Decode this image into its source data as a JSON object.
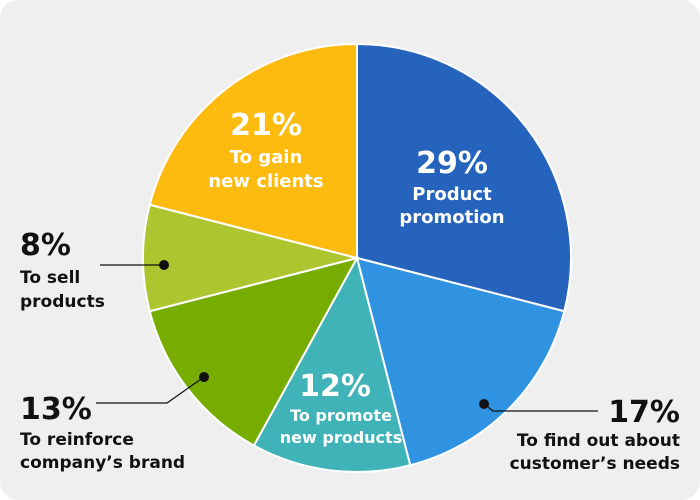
{
  "chart_data": {
    "type": "pie",
    "slices": [
      {
        "label": "Product promotion",
        "lines": [
          "Product",
          "promotion"
        ],
        "pct_text": "29%",
        "value": 29,
        "color": "#2563bd"
      },
      {
        "label": "To find out about customer's needs",
        "lines": [
          "To find out about",
          "customer’s needs"
        ],
        "pct_text": "17%",
        "value": 17,
        "color": "#2f93e2"
      },
      {
        "label": "To promote new products",
        "lines": [
          "To promote",
          "new products"
        ],
        "pct_text": "12%",
        "value": 12,
        "color": "#3fb3b7"
      },
      {
        "label": "To reinforce company's brand",
        "lines": [
          "To reinforce",
          "company’s brand"
        ],
        "pct_text": "13%",
        "value": 13,
        "color": "#77ad00"
      },
      {
        "label": "To sell products",
        "lines": [
          "To sell",
          "products"
        ],
        "pct_text": "8%",
        "value": 8,
        "color": "#adc630"
      },
      {
        "label": "To gain new clients",
        "lines": [
          "To gain",
          "new clients"
        ],
        "pct_text": "21%",
        "value": 21,
        "color": "#fdbb0f"
      }
    ]
  }
}
